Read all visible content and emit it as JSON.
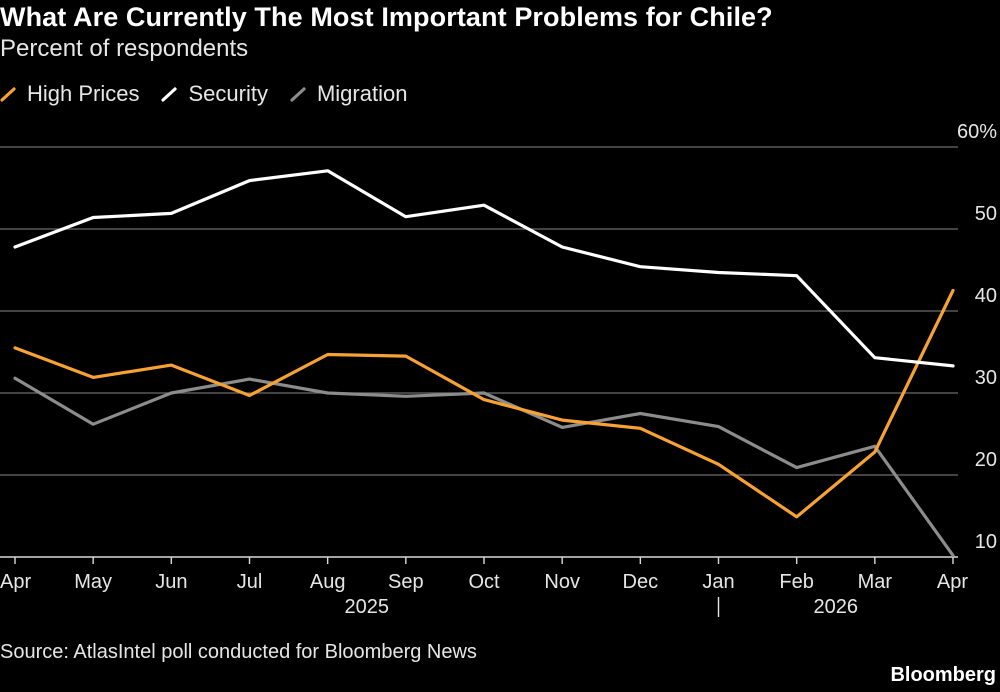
{
  "title": "What Are Currently The Most Important Problems for Chile?",
  "subtitle": "Percent of respondents",
  "source": "Source: AtlasIntel poll conducted for Bloomberg News",
  "brand": "Bloomberg",
  "colors": {
    "background": "#000000",
    "grid": "#6b6b6b",
    "high_prices": "#f7a233",
    "security": "#ffffff",
    "migration": "#8c8c8c"
  },
  "chart_data": {
    "type": "line",
    "x": [
      "Apr",
      "May",
      "Jun",
      "Jul",
      "Aug",
      "Sep",
      "Oct",
      "Nov",
      "Dec",
      "Jan",
      "Feb",
      "Mar",
      "Apr"
    ],
    "year_labels": [
      {
        "label": "2025",
        "x_index": 4.5
      },
      {
        "label": "2026",
        "x_index": 10.5
      }
    ],
    "year_divider_at": 9,
    "series": [
      {
        "name": "High Prices",
        "color": "#f7a233",
        "values": [
          35.5,
          31.9,
          33.4,
          29.7,
          34.7,
          34.5,
          29.2,
          26.7,
          25.7,
          21.3,
          14.9,
          22.8,
          42.5
        ]
      },
      {
        "name": "Security",
        "color": "#ffffff",
        "values": [
          47.8,
          51.4,
          51.9,
          55.9,
          57.1,
          51.5,
          52.9,
          47.8,
          45.4,
          44.7,
          44.3,
          34.3,
          33.3
        ]
      },
      {
        "name": "Migration",
        "color": "#8c8c8c",
        "values": [
          31.8,
          26.2,
          30.0,
          31.7,
          30.0,
          29.6,
          30.0,
          25.8,
          27.5,
          25.9,
          20.9,
          23.5,
          10.2
        ]
      }
    ],
    "ylim": [
      10,
      60
    ],
    "yticks": [
      10,
      20,
      30,
      40,
      50,
      60
    ],
    "ytick_labels": [
      "10",
      "20",
      "30",
      "40",
      "50",
      "60%"
    ],
    "y_axis_position": "right",
    "grid": true,
    "legend_position": "top-left"
  }
}
